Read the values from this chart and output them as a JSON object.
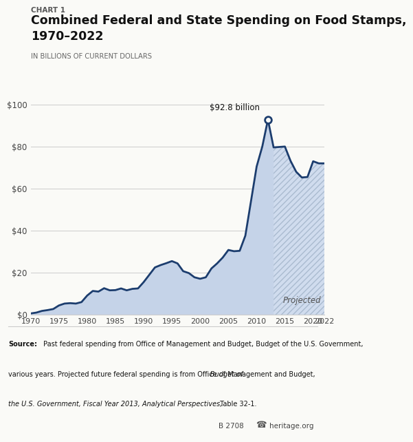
{
  "chart_label": "CHART 1",
  "title": "Combined Federal and State Spending on Food Stamps,\n1970–2022",
  "subtitle": "IN BILLIONS OF CURRENT DOLLARS",
  "years": [
    1970,
    1971,
    1972,
    1973,
    1974,
    1975,
    1976,
    1977,
    1978,
    1979,
    1980,
    1981,
    1982,
    1983,
    1984,
    1985,
    1986,
    1987,
    1988,
    1989,
    1990,
    1991,
    1992,
    1993,
    1994,
    1995,
    1996,
    1997,
    1998,
    1999,
    2000,
    2001,
    2002,
    2003,
    2004,
    2005,
    2006,
    2007,
    2008,
    2009,
    2010,
    2011,
    2012,
    2013,
    2014,
    2015,
    2016,
    2017,
    2018,
    2019,
    2020,
    2021,
    2022
  ],
  "values": [
    0.6,
    1.0,
    1.8,
    2.2,
    2.7,
    4.4,
    5.3,
    5.5,
    5.3,
    6.0,
    9.1,
    11.3,
    11.0,
    12.6,
    11.6,
    11.7,
    12.5,
    11.6,
    12.3,
    12.5,
    15.5,
    19.0,
    22.5,
    23.6,
    24.5,
    25.5,
    24.4,
    20.7,
    19.8,
    17.8,
    17.1,
    17.8,
    22.0,
    24.4,
    27.2,
    30.8,
    30.2,
    30.4,
    37.6,
    54.0,
    70.5,
    80.0,
    92.8,
    79.6,
    79.8,
    80.0,
    73.2,
    68.0,
    65.3,
    65.5,
    73.0,
    72.0,
    72.0
  ],
  "projected_start_year": 2013,
  "peak_year": 2012,
  "peak_value": 92.8,
  "peak_label": "$92.8 billion",
  "line_color": "#1c3d6e",
  "fill_color_solid": "#c5d3e8",
  "fill_color_hatch": "#d0dcee",
  "hatch_edgecolor": "#aabbd0",
  "hatch_pattern": "////",
  "ylim": [
    0,
    100
  ],
  "yticks": [
    0,
    20,
    40,
    60,
    80,
    100
  ],
  "ytick_labels": [
    "$0",
    "$20",
    "$40",
    "$60",
    "$80",
    "$100"
  ],
  "xticks": [
    1970,
    1975,
    1980,
    1985,
    1990,
    1995,
    2000,
    2005,
    2010,
    2015,
    2020,
    2022
  ],
  "bg_color": "#fafaf7",
  "grid_color": "#cccccc",
  "title_color": "#111111",
  "label_color": "#555555",
  "source_bold": "Source:",
  "source_normal": " Past federal spending from Office of Management and Budget, Budget of the U.S. Government, various years. Projected future federal spending is from Office of Management and Budget, Budget of the U.S. Government, Fiscal Year 2013, Analytical Perspectives, Table 32-1.",
  "footnote_left": "B 2708",
  "footnote_right": "heritage.org",
  "projected_label": "Projected"
}
